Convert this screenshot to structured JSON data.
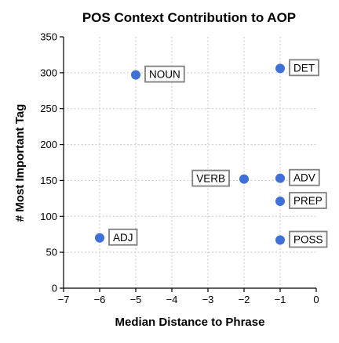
{
  "chart_data": {
    "type": "scatter",
    "title": "POS Context Contribution to AOP",
    "xlabel": "Median Distance to Phrase",
    "ylabel": "# Most Important Tag",
    "xlim": [
      -7,
      0
    ],
    "ylim": [
      0,
      350
    ],
    "xticks": [
      -7,
      -6,
      -5,
      -4,
      -3,
      -2,
      -1,
      0
    ],
    "yticks": [
      0,
      50,
      100,
      150,
      200,
      250,
      300,
      350
    ],
    "grid": true,
    "point_color": "#3f6fd8",
    "points": [
      {
        "label": "NOUN",
        "x": -5,
        "y": 297,
        "label_side": "right"
      },
      {
        "label": "DET",
        "x": -1,
        "y": 306,
        "label_side": "right"
      },
      {
        "label": "VERB",
        "x": -2,
        "y": 152,
        "label_side": "left"
      },
      {
        "label": "ADV",
        "x": -1,
        "y": 153,
        "label_side": "right"
      },
      {
        "label": "PREP",
        "x": -1,
        "y": 121,
        "label_side": "right"
      },
      {
        "label": "ADJ",
        "x": -6,
        "y": 70,
        "label_side": "right"
      },
      {
        "label": "POSS",
        "x": -1,
        "y": 67,
        "label_side": "right"
      }
    ]
  }
}
